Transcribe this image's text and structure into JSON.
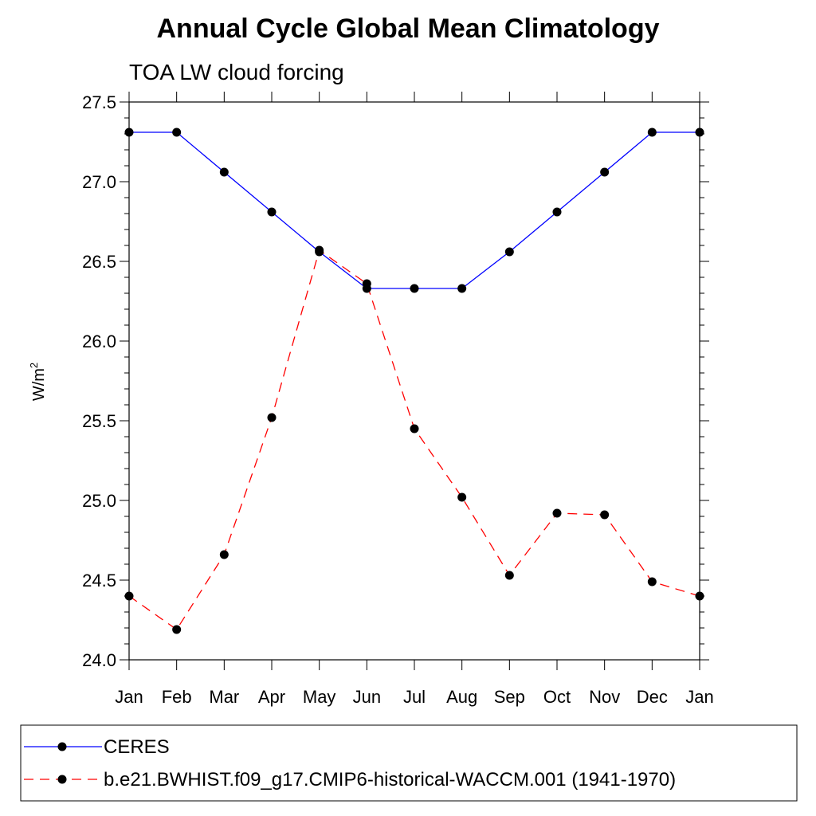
{
  "chart_data": {
    "type": "line",
    "title": "Annual Cycle Global Mean Climatology",
    "subtitle": "TOA LW cloud forcing",
    "ylabel": "W/m",
    "ylabel_superscript": "2",
    "xlabel": "",
    "categories": [
      "Jan",
      "Feb",
      "Mar",
      "Apr",
      "May",
      "Jun",
      "Jul",
      "Aug",
      "Sep",
      "Oct",
      "Nov",
      "Dec",
      "Jan"
    ],
    "ylim": [
      24.0,
      27.5
    ],
    "yticks": [
      24.0,
      24.5,
      25.0,
      25.5,
      26.0,
      26.5,
      27.0,
      27.5
    ],
    "ytick_labels": [
      "24.0",
      "24.5",
      "25.0",
      "25.5",
      "26.0",
      "26.5",
      "27.0",
      "27.5"
    ],
    "legend_position": "bottom",
    "series": [
      {
        "name": "CERES",
        "color": "#0000ff",
        "style": "solid",
        "values": [
          27.31,
          27.31,
          27.06,
          26.81,
          26.56,
          26.33,
          26.33,
          26.33,
          26.56,
          26.81,
          27.06,
          27.31,
          27.31
        ]
      },
      {
        "name": "b.e21.BWHIST.f09_g17.CMIP6-historical-WACCM.001 (1941-1970)",
        "color": "#ff0000",
        "style": "dashed",
        "values": [
          24.4,
          24.19,
          24.66,
          25.52,
          26.57,
          26.36,
          25.45,
          25.02,
          24.53,
          24.92,
          24.91,
          24.49,
          24.4
        ]
      }
    ]
  }
}
